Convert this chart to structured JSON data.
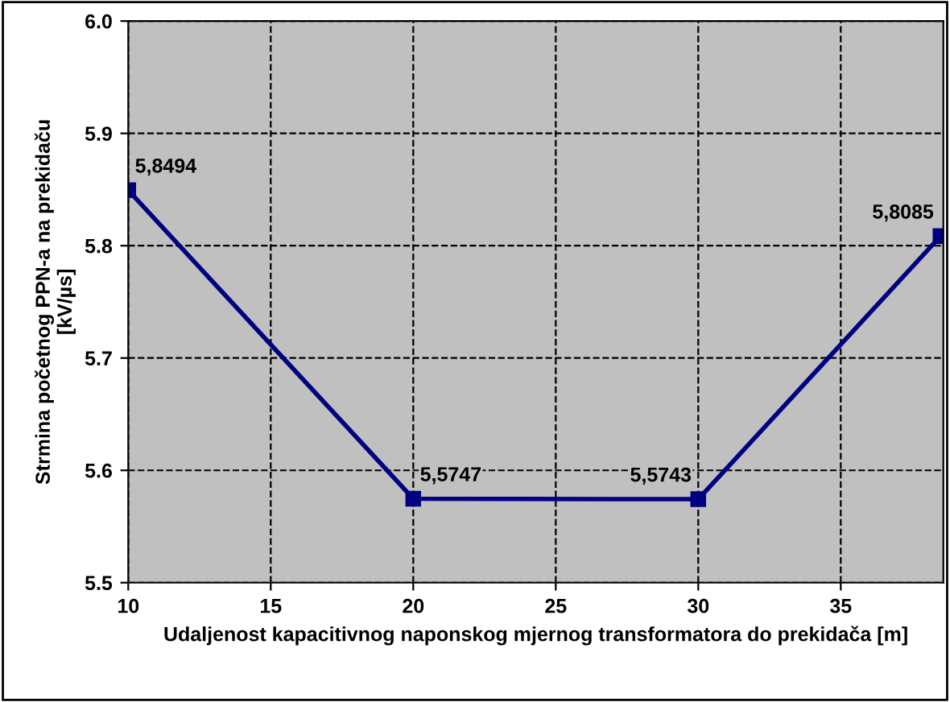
{
  "chart_data": {
    "type": "line",
    "xlabel": "Udaljenost kapacitivnog naponskog mjernog transformatora do prekidača [m]",
    "ylabel": "Strmina početnog PPN-a na prekidaču\n[kV/µs]",
    "x": [
      10,
      20,
      30,
      38.5
    ],
    "series": [
      {
        "color": "#000080",
        "values": [
          5.8494,
          5.5747,
          5.5743,
          5.8085
        ],
        "value_labels": [
          "5,8494",
          "5,5747",
          "5,5743",
          "5,8085"
        ]
      }
    ],
    "xlim": [
      10,
      38.6
    ],
    "xticks": [
      10,
      15,
      20,
      25,
      30,
      35
    ],
    "ylim": [
      5.5,
      6.0
    ],
    "yticks": [
      {
        "value": 5.5,
        "label": "5.5"
      },
      {
        "value": 5.6,
        "label": "5.6"
      },
      {
        "value": 5.7,
        "label": "5.7"
      },
      {
        "value": 5.8,
        "label": "5.8"
      },
      {
        "value": 5.9,
        "label": "5.9"
      },
      {
        "value": 6.0,
        "label": "6.0"
      }
    ],
    "grid": true,
    "marker": "square",
    "line_style": "solid"
  }
}
